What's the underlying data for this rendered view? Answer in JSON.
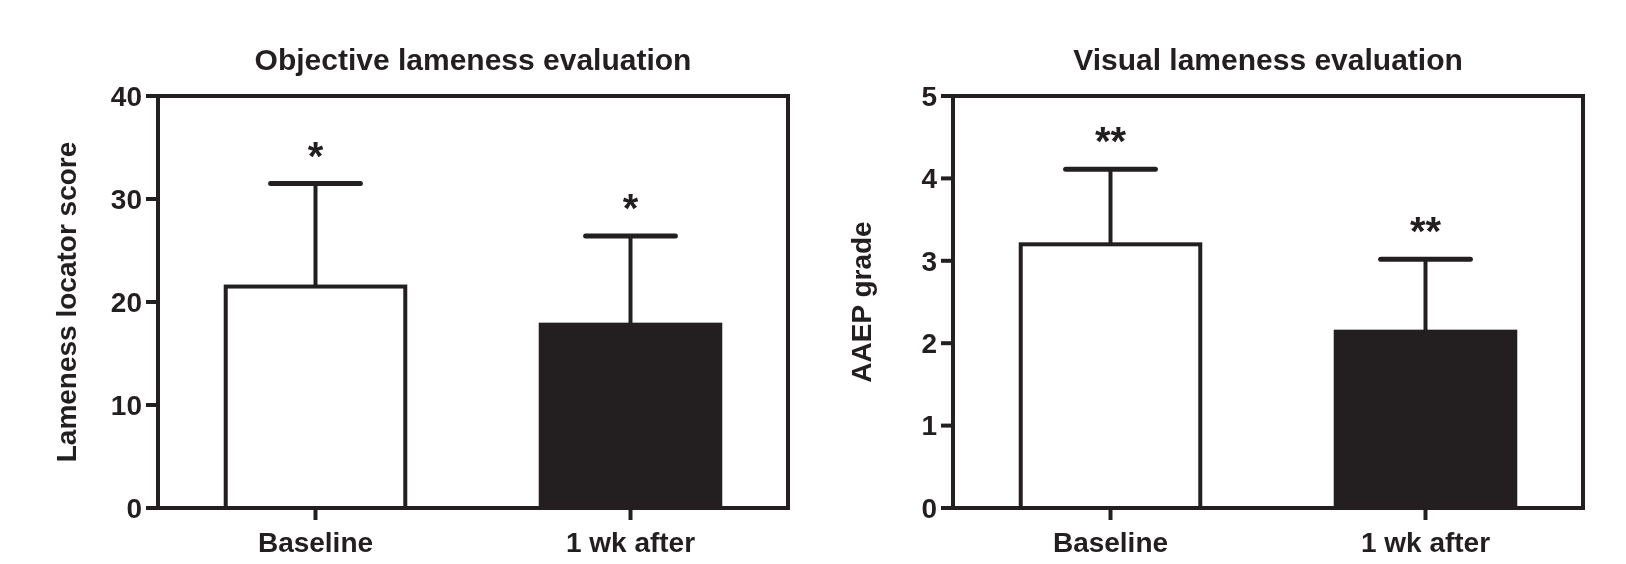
{
  "chart_data": [
    {
      "type": "bar",
      "title": "Objective lameness evaluation",
      "ylabel": "Lameness locator score",
      "categories": [
        "Baseline",
        "1 wk after"
      ],
      "values": [
        21.5,
        17.8
      ],
      "colors": [
        "#ffffff",
        "#231f20"
      ],
      "errors": [
        [
          21.5,
          31.5
        ],
        [
          17.8,
          26.4
        ]
      ],
      "ylim": [
        0,
        40
      ],
      "yticks": [
        0,
        10,
        20,
        30,
        40
      ],
      "grid": false,
      "annotations": [
        "*",
        "*"
      ]
    },
    {
      "type": "bar",
      "title": "Visual lameness evaluation",
      "ylabel": "AAEP grade",
      "categories": [
        "Baseline",
        "1 wk after"
      ],
      "values": [
        3.2,
        2.14
      ],
      "colors": [
        "#ffffff",
        "#231f20"
      ],
      "errors": [
        [
          3.2,
          4.11
        ],
        [
          2.14,
          3.02
        ]
      ],
      "ylim": [
        0,
        5
      ],
      "yticks": [
        0,
        1,
        2,
        3,
        4,
        5
      ],
      "grid": false,
      "annotations": [
        "**",
        "**"
      ]
    }
  ]
}
